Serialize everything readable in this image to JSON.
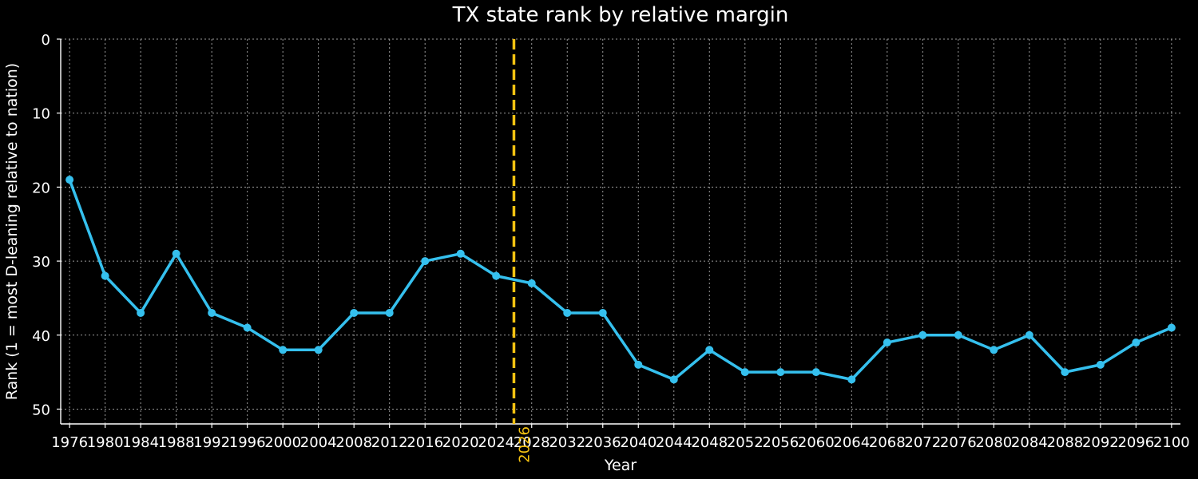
{
  "chart_data": {
    "type": "line",
    "title": "TX state rank by relative margin",
    "xlabel": "Year",
    "ylabel": "Rank (1 = most D-leaning relative to nation)",
    "xlim": [
      1975,
      2101
    ],
    "ylim": [
      52,
      0
    ],
    "y_inverted": true,
    "grid": true,
    "x_ticks": [
      1976,
      1980,
      1984,
      1988,
      1992,
      1996,
      2000,
      2004,
      2008,
      2012,
      2016,
      2020,
      2024,
      2028,
      2032,
      2036,
      2040,
      2044,
      2048,
      2052,
      2056,
      2060,
      2064,
      2068,
      2072,
      2076,
      2080,
      2084,
      2088,
      2092,
      2096,
      2100
    ],
    "y_ticks": [
      0,
      10,
      20,
      30,
      40,
      50
    ],
    "series": [
      {
        "name": "",
        "color": "#35c0ee",
        "x": [
          1976,
          1980,
          1984,
          1988,
          1992,
          1996,
          2000,
          2004,
          2008,
          2012,
          2016,
          2020,
          2024,
          2028,
          2032,
          2036,
          2040,
          2044,
          2048,
          2052,
          2056,
          2060,
          2064,
          2068,
          2072,
          2076,
          2080,
          2084,
          2088,
          2092,
          2096,
          2100
        ],
        "y": [
          19,
          32,
          37,
          29,
          37,
          39,
          42,
          42,
          37,
          37,
          30,
          29,
          32,
          33,
          37,
          37,
          44,
          46,
          42,
          45,
          45,
          45,
          46,
          41,
          40,
          40,
          42,
          40,
          45,
          44,
          41,
          39
        ]
      }
    ],
    "reference_line": {
      "x": 2026,
      "label": "2026",
      "color": "#f5c211",
      "style": "dashed"
    },
    "background": "#000000",
    "foreground": "#ffffff"
  }
}
